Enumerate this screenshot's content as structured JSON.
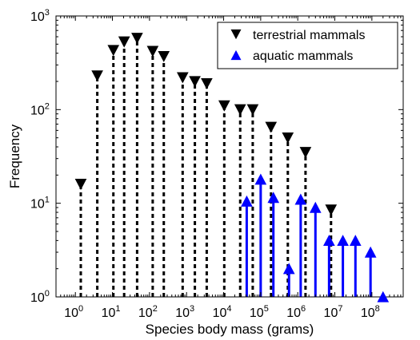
{
  "chart_data": {
    "type": "scatter",
    "xlabel": "Species body mass (grams)",
    "ylabel": "Frequency",
    "xscale": "log",
    "yscale": "log",
    "xlim": [
      0.3,
      700000000
    ],
    "ylim": [
      1,
      1000
    ],
    "x_ticks": [
      1,
      10,
      100,
      1000,
      10000,
      100000,
      1000000,
      10000000,
      100000000
    ],
    "y_ticks": [
      1,
      10,
      100,
      1000
    ],
    "tick_base": "10",
    "x_tick_exponents": [
      "0",
      "1",
      "2",
      "3",
      "4",
      "5",
      "6",
      "7",
      "8"
    ],
    "y_tick_exponents": [
      "0",
      "1",
      "2",
      "3"
    ],
    "grid": false,
    "legend": "top-right",
    "series": [
      {
        "name": "terrestrial mammals",
        "marker": "triangle-down",
        "color": "#000000",
        "line_style": "dashed",
        "x": [
          1.4,
          3.9,
          10.6,
          20.7,
          46.3,
          122,
          243,
          784,
          1675,
          3500,
          10400,
          28000,
          61000,
          190000,
          540000,
          1620000,
          7900000
        ],
        "y": [
          16,
          230,
          430,
          530,
          580,
          420,
          370,
          220,
          200,
          190,
          110,
          100,
          100,
          65,
          50,
          35,
          8.5
        ]
      },
      {
        "name": "aquatic mammals",
        "marker": "triangle-up",
        "color": "#0000ff",
        "line_style": "solid",
        "x": [
          42000,
          100000,
          220000,
          580000,
          1200000,
          3000000,
          7000000,
          16500000,
          36000000,
          92000000,
          200000000
        ],
        "y": [
          10.5,
          18,
          11.5,
          2,
          11,
          9,
          4,
          4,
          4,
          3,
          1
        ]
      }
    ]
  }
}
